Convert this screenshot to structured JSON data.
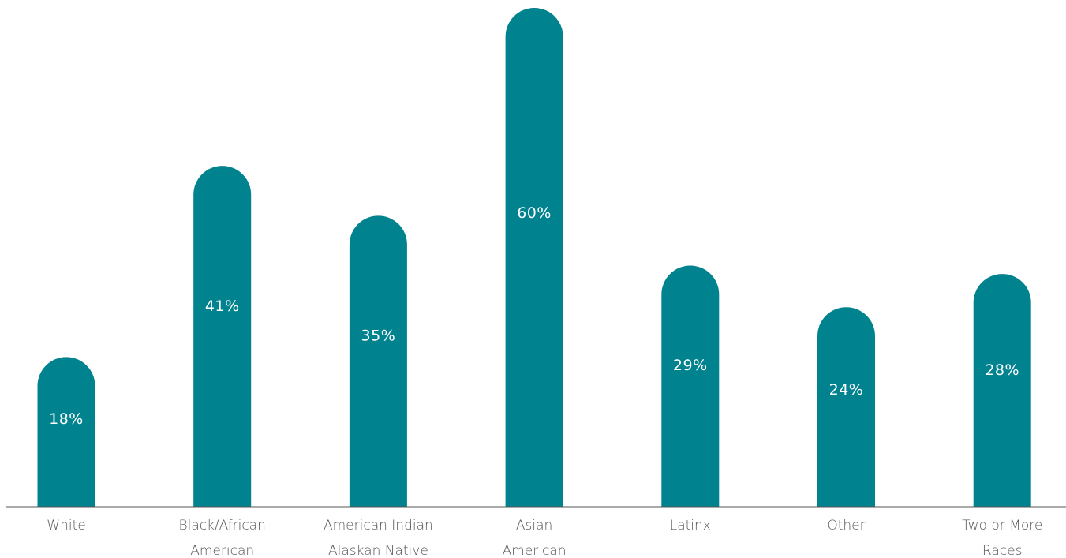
{
  "chart_data": {
    "type": "bar",
    "title": "",
    "xlabel": "",
    "ylabel": "",
    "categories": [
      [
        "White"
      ],
      [
        "Black/African",
        "American"
      ],
      [
        "American Indian",
        "Alaskan Native"
      ],
      [
        "Asian",
        "American"
      ],
      [
        "Latinx"
      ],
      [
        "Other"
      ],
      [
        "Two or More",
        "Races"
      ]
    ],
    "values": [
      18,
      41,
      35,
      60,
      29,
      24,
      28
    ],
    "value_labels": [
      "18%",
      "41%",
      "35%",
      "60%",
      "29%",
      "24%",
      "28%"
    ],
    "ylim": [
      0,
      60
    ],
    "grid": false,
    "legend": "none",
    "bar_color": "#00828F",
    "axis_color": "#555555"
  }
}
